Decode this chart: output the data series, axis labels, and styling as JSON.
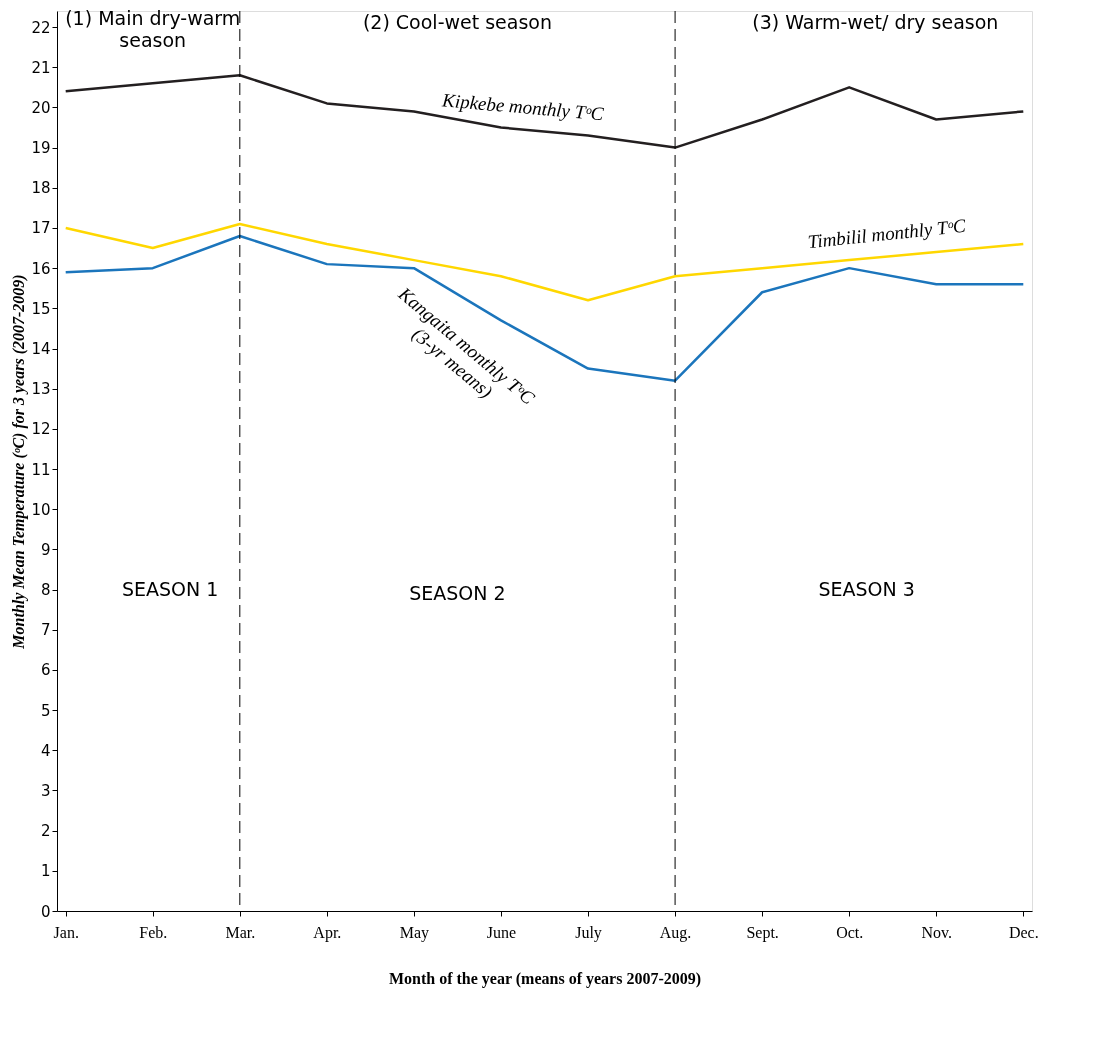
{
  "chart_data": {
    "type": "line",
    "categories": [
      "Jan.",
      "Feb.",
      "Mar.",
      "Apr.",
      "May",
      "June",
      "July",
      "Aug.",
      "Sept.",
      "Oct.",
      "Nov.",
      "Dec."
    ],
    "series": [
      {
        "name": "Kipkebe monthly TᵒC",
        "color": "#231f20",
        "values": [
          20.4,
          20.6,
          20.8,
          20.1,
          19.9,
          19.5,
          19.3,
          19.0,
          19.7,
          20.5,
          19.7,
          19.9
        ]
      },
      {
        "name": "Timbilil monthly TᵒC",
        "color": "#ffd700",
        "values": [
          17.0,
          16.5,
          17.1,
          16.6,
          16.2,
          15.8,
          15.2,
          15.8,
          16.0,
          16.2,
          16.4,
          16.6
        ]
      },
      {
        "name": "Kangaita monthly TᵒC (3-yr means)",
        "color": "#1b75bc",
        "values": [
          15.9,
          16.0,
          16.8,
          16.1,
          16.0,
          14.7,
          13.5,
          13.2,
          15.4,
          16.0,
          15.6,
          15.6
        ]
      }
    ],
    "xlabel": "Month of the year (means of years 2007-2009)",
    "ylabel": "Monthly Mean Temperature (ᵒC) for 3 years (2007-2009)",
    "ylim": [
      0,
      22.4
    ],
    "yticks": [
      0,
      1,
      2,
      3,
      4,
      5,
      6,
      7,
      8,
      9,
      10,
      11,
      12,
      13,
      14,
      15,
      16,
      17,
      18,
      19,
      20,
      21,
      22
    ],
    "ref_lines": [
      {
        "axis": "x",
        "value": "Mar.",
        "line_style": "dashed"
      },
      {
        "axis": "x",
        "value": "Aug.",
        "line_style": "dashed"
      }
    ],
    "annotations": [
      "SEASON 1",
      "SEASON 2",
      "SEASON 3",
      "(1) Main dry-warm season",
      "(2) Cool-wet season",
      "(3) Warm-wet/ dry season"
    ],
    "grid": false
  }
}
